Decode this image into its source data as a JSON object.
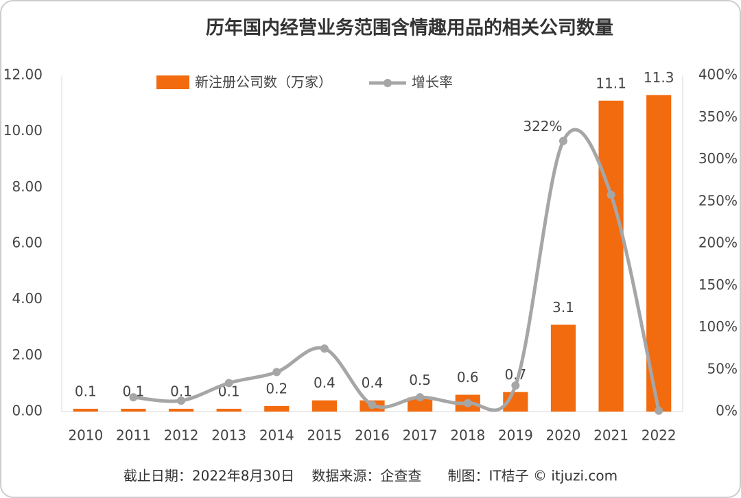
{
  "chart_data": {
    "type": "bar_line",
    "title": "历年国内经营业务范围含情趣用品的相关公司数量",
    "categories": [
      "2010",
      "2011",
      "2012",
      "2013",
      "2014",
      "2015",
      "2016",
      "2017",
      "2018",
      "2019",
      "2020",
      "2021",
      "2022"
    ],
    "series": [
      {
        "name": "新注册公司数（万家）",
        "color": "#f26b0f",
        "kind": "bar",
        "values": [
          0.1,
          0.1,
          0.1,
          0.1,
          0.2,
          0.4,
          0.4,
          0.5,
          0.6,
          0.7,
          3.1,
          11.1,
          11.3
        ]
      },
      {
        "name": "增长率",
        "color": "#a6a6a6",
        "kind": "line",
        "axis": "y2",
        "values": [
          null,
          17,
          13,
          34,
          47,
          75,
          8,
          17,
          10,
          31,
          322,
          258,
          1
        ],
        "value_labels": [
          null,
          null,
          null,
          null,
          null,
          null,
          null,
          null,
          null,
          null,
          "322%",
          null,
          null
        ]
      }
    ],
    "ylim": [
      0,
      12
    ],
    "yticks": [
      {
        "value": 0,
        "label": "0.00"
      },
      {
        "value": 2,
        "label": "2.00"
      },
      {
        "value": 4,
        "label": "4.00"
      },
      {
        "value": 6,
        "label": "6.00"
      },
      {
        "value": 8,
        "label": "8.00"
      },
      {
        "value": 10,
        "label": "10.00"
      },
      {
        "value": 12,
        "label": "12.00"
      }
    ],
    "y2lim": [
      0,
      400
    ],
    "y2ticks": [
      {
        "value": 0,
        "label": "0%"
      },
      {
        "value": 50,
        "label": "50%"
      },
      {
        "value": 100,
        "label": "100%"
      },
      {
        "value": 150,
        "label": "150%"
      },
      {
        "value": 200,
        "label": "200%"
      },
      {
        "value": 250,
        "label": "250%"
      },
      {
        "value": 300,
        "label": "300%"
      },
      {
        "value": 350,
        "label": "350%"
      },
      {
        "value": 400,
        "label": "400%"
      }
    ],
    "footer": "截止日期：2022年8月30日    数据来源：企查查      制图：IT桔子 © itjuzi.com"
  }
}
